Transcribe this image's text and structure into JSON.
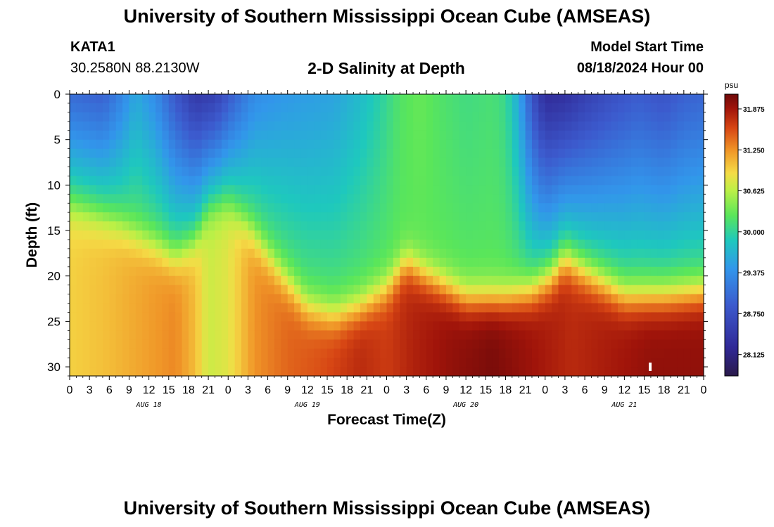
{
  "header": {
    "title": "University of Southern Mississippi Ocean Cube (AMSEAS)",
    "station": "KATA1",
    "coords": "30.2580N  88.2130W",
    "subtitle": "2-D Salinity at Depth",
    "model_start_label": "Model Start Time",
    "model_start_value": "08/18/2024 Hour 00"
  },
  "footer": {
    "title": "University of Southern Mississippi Ocean Cube (AMSEAS)"
  },
  "chart_data": {
    "type": "heatmap",
    "title": "2-D Salinity at Depth",
    "xlabel": "Forecast Time(Z)",
    "ylabel": "Depth (ft)",
    "x_range_hours": [
      0,
      96
    ],
    "y_range_ft": [
      0,
      31
    ],
    "x_tick_labels": [
      "0",
      "3",
      "6",
      "9",
      "12",
      "15",
      "18",
      "21",
      "0",
      "3",
      "6",
      "9",
      "12",
      "15",
      "18",
      "21",
      "0",
      "3",
      "6",
      "9",
      "12",
      "15",
      "18",
      "21",
      "0",
      "3",
      "6",
      "9",
      "12",
      "15",
      "18",
      "21",
      "0"
    ],
    "date_labels": [
      {
        "label": "AUG 18",
        "hour": 12
      },
      {
        "label": "AUG 19",
        "hour": 36
      },
      {
        "label": "AUG 20",
        "hour": 60
      },
      {
        "label": "AUG 21",
        "hour": 84
      }
    ],
    "y_ticks": [
      0,
      5,
      10,
      15,
      20,
      25,
      30
    ],
    "colorbar": {
      "unit": "psu",
      "min": 27.8,
      "max": 32.1,
      "tick_values": [
        28.125,
        28.75,
        29.375,
        30.0,
        30.625,
        31.25,
        31.875
      ],
      "tick_labels": [
        "28.125",
        "28.750",
        "29.375",
        "30.000",
        "30.625",
        "31.250",
        "31.875"
      ]
    },
    "surface_salinity_psu": [
      {
        "h": 0,
        "v": 29.05
      },
      {
        "h": 5,
        "v": 28.95
      },
      {
        "h": 8,
        "v": 29.3
      },
      {
        "h": 10,
        "v": 29.6
      },
      {
        "h": 13,
        "v": 29.35
      },
      {
        "h": 16,
        "v": 28.85
      },
      {
        "h": 19,
        "v": 28.45
      },
      {
        "h": 22,
        "v": 28.55
      },
      {
        "h": 25,
        "v": 29.0
      },
      {
        "h": 28,
        "v": 29.35
      },
      {
        "h": 32,
        "v": 29.45
      },
      {
        "h": 36,
        "v": 29.5
      },
      {
        "h": 40,
        "v": 29.55
      },
      {
        "h": 44,
        "v": 29.75
      },
      {
        "h": 47,
        "v": 29.95
      },
      {
        "h": 50,
        "v": 30.2
      },
      {
        "h": 53,
        "v": 30.3
      },
      {
        "h": 56,
        "v": 30.2
      },
      {
        "h": 60,
        "v": 30.1
      },
      {
        "h": 64,
        "v": 30.15
      },
      {
        "h": 66,
        "v": 30.05
      },
      {
        "h": 68,
        "v": 29.6
      },
      {
        "h": 70,
        "v": 28.8
      },
      {
        "h": 72,
        "v": 28.3
      },
      {
        "h": 75,
        "v": 28.35
      },
      {
        "h": 78,
        "v": 28.55
      },
      {
        "h": 82,
        "v": 28.75
      },
      {
        "h": 86,
        "v": 28.9
      },
      {
        "h": 90,
        "v": 28.8
      },
      {
        "h": 93,
        "v": 28.95
      },
      {
        "h": 96,
        "v": 29.0
      }
    ],
    "transition_depth_ft": [
      {
        "h": 0,
        "v": 13
      },
      {
        "h": 8,
        "v": 15
      },
      {
        "h": 13,
        "v": 17
      },
      {
        "h": 16,
        "v": 18.5
      },
      {
        "h": 19,
        "v": 17
      },
      {
        "h": 21,
        "v": 14
      },
      {
        "h": 24,
        "v": 13
      },
      {
        "h": 27,
        "v": 15
      },
      {
        "h": 32,
        "v": 20
      },
      {
        "h": 36,
        "v": 23.5
      },
      {
        "h": 40,
        "v": 24.5
      },
      {
        "h": 44,
        "v": 23.5
      },
      {
        "h": 48,
        "v": 21.5
      },
      {
        "h": 51,
        "v": 18.5
      },
      {
        "h": 54,
        "v": 20
      },
      {
        "h": 60,
        "v": 22.5
      },
      {
        "h": 66,
        "v": 22.5
      },
      {
        "h": 70,
        "v": 22
      },
      {
        "h": 73,
        "v": 20.5
      },
      {
        "h": 75,
        "v": 18.5
      },
      {
        "h": 78,
        "v": 20
      },
      {
        "h": 84,
        "v": 22.5
      },
      {
        "h": 90,
        "v": 22.5
      },
      {
        "h": 96,
        "v": 22
      }
    ],
    "bottom_salinity_psu": [
      {
        "h": 0,
        "v": 30.95
      },
      {
        "h": 6,
        "v": 31.05
      },
      {
        "h": 12,
        "v": 31.2
      },
      {
        "h": 16,
        "v": 31.3
      },
      {
        "h": 19,
        "v": 31.05
      },
      {
        "h": 21,
        "v": 30.7
      },
      {
        "h": 24,
        "v": 30.8
      },
      {
        "h": 28,
        "v": 31.25
      },
      {
        "h": 33,
        "v": 31.45
      },
      {
        "h": 38,
        "v": 31.55
      },
      {
        "h": 44,
        "v": 31.75
      },
      {
        "h": 48,
        "v": 31.65
      },
      {
        "h": 52,
        "v": 31.8
      },
      {
        "h": 58,
        "v": 31.95
      },
      {
        "h": 64,
        "v": 32.05
      },
      {
        "h": 70,
        "v": 31.9
      },
      {
        "h": 76,
        "v": 31.75
      },
      {
        "h": 82,
        "v": 31.85
      },
      {
        "h": 88,
        "v": 31.95
      },
      {
        "h": 96,
        "v": 31.95
      }
    ]
  }
}
